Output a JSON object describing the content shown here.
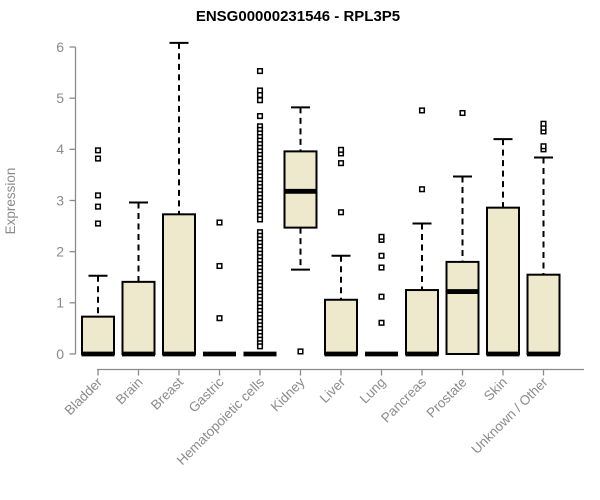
{
  "window": {
    "title": "ENSG00000231546 - RPL3P5"
  },
  "chart_data": {
    "type": "boxplot",
    "title": "ENSG00000231546 - RPL3P5",
    "xlabel": "",
    "ylabel": "Expression",
    "ylim": [
      0,
      6
    ],
    "yticks": [
      0,
      1,
      2,
      3,
      4,
      5,
      6
    ],
    "grid": false,
    "legend": "none",
    "colors": {
      "box_fill": "#EEE8CD",
      "box_stroke": "#000000",
      "median": "#000000",
      "axis": "#8B8B8B",
      "tick_label": "#8B8B8B",
      "title": "#000000",
      "background": "#FFFFFF"
    },
    "categories": [
      "Bladder",
      "Brain",
      "Breast",
      "Gastric",
      "Hematopoietic cells",
      "Kidney",
      "Liver",
      "Lung",
      "Pancreas",
      "Prostate",
      "Skin",
      "Unknown / Other"
    ],
    "boxes": [
      {
        "label": "Bladder",
        "whisker_low": 0,
        "q1": 0,
        "median": 0,
        "q3": 0.73,
        "whisker_high": 1.53,
        "outliers": [
          2.55,
          2.88,
          3.1,
          3.82,
          3.98
        ]
      },
      {
        "label": "Brain",
        "whisker_low": 0,
        "q1": 0,
        "median": 0,
        "q3": 1.41,
        "whisker_high": 2.96,
        "outliers": []
      },
      {
        "label": "Breast",
        "whisker_low": 0,
        "q1": 0,
        "median": 0,
        "q3": 2.73,
        "whisker_high": 6.08,
        "outliers": []
      },
      {
        "label": "Gastric",
        "whisker_low": 0,
        "q1": 0,
        "median": 0,
        "q3": 0,
        "whisker_high": 0,
        "outliers": [
          0.7,
          1.72,
          2.57
        ]
      },
      {
        "label": "Hematopoietic cells",
        "whisker_low": 0,
        "q1": 0,
        "median": 0,
        "q3": 0,
        "whisker_high": 0,
        "outliers": [
          5.53,
          5.15,
          5.06,
          4.96,
          4.65,
          4.45,
          4.38,
          4.31,
          4.24,
          4.17,
          4.1,
          4.03,
          3.96,
          3.89,
          3.82,
          3.75,
          3.68,
          3.61,
          3.54,
          3.47,
          3.4,
          3.33,
          3.26,
          3.19,
          3.12,
          3.05,
          2.98,
          2.91,
          2.84,
          2.77,
          2.7,
          2.63,
          2.38,
          2.31,
          2.24,
          2.17,
          2.1,
          2.03,
          1.96,
          1.89,
          1.82,
          1.75,
          1.68,
          1.61,
          1.54,
          1.47,
          1.4,
          1.33,
          1.26,
          1.19,
          1.12,
          1.05,
          0.98,
          0.91,
          0.84,
          0.77,
          0.7,
          0.63,
          0.56,
          0.49,
          0.42,
          0.35,
          0.28,
          0.21,
          0.15
        ]
      },
      {
        "label": "Kidney",
        "whisker_low": 1.65,
        "q1": 2.47,
        "median": 3.18,
        "q3": 3.96,
        "whisker_high": 4.82,
        "outliers": [
          0.05
        ]
      },
      {
        "label": "Liver",
        "whisker_low": 0,
        "q1": 0,
        "median": 0,
        "q3": 1.06,
        "whisker_high": 1.92,
        "outliers": [
          2.77,
          3.73,
          3.92,
          3.99
        ]
      },
      {
        "label": "Lung",
        "whisker_low": 0,
        "q1": 0,
        "median": 0,
        "q3": 0,
        "whisker_high": 0,
        "outliers": [
          0.61,
          1.12,
          1.69,
          1.92,
          2.23,
          2.29
        ]
      },
      {
        "label": "Pancreas",
        "whisker_low": 0,
        "q1": 0,
        "median": 0,
        "q3": 1.25,
        "whisker_high": 2.55,
        "outliers": [
          3.22,
          4.76
        ]
      },
      {
        "label": "Prostate",
        "whisker_low": 0,
        "q1": 0,
        "median": 1.22,
        "q3": 1.8,
        "whisker_high": 3.47,
        "outliers": [
          4.71
        ]
      },
      {
        "label": "Skin",
        "whisker_low": 0,
        "q1": 0,
        "median": 0,
        "q3": 2.86,
        "whisker_high": 4.2,
        "outliers": []
      },
      {
        "label": "Unknown / Other",
        "whisker_low": 0,
        "q1": 0,
        "median": 0,
        "q3": 1.55,
        "whisker_high": 3.84,
        "outliers": [
          4.0,
          4.06,
          4.35,
          4.42,
          4.5
        ]
      }
    ]
  }
}
